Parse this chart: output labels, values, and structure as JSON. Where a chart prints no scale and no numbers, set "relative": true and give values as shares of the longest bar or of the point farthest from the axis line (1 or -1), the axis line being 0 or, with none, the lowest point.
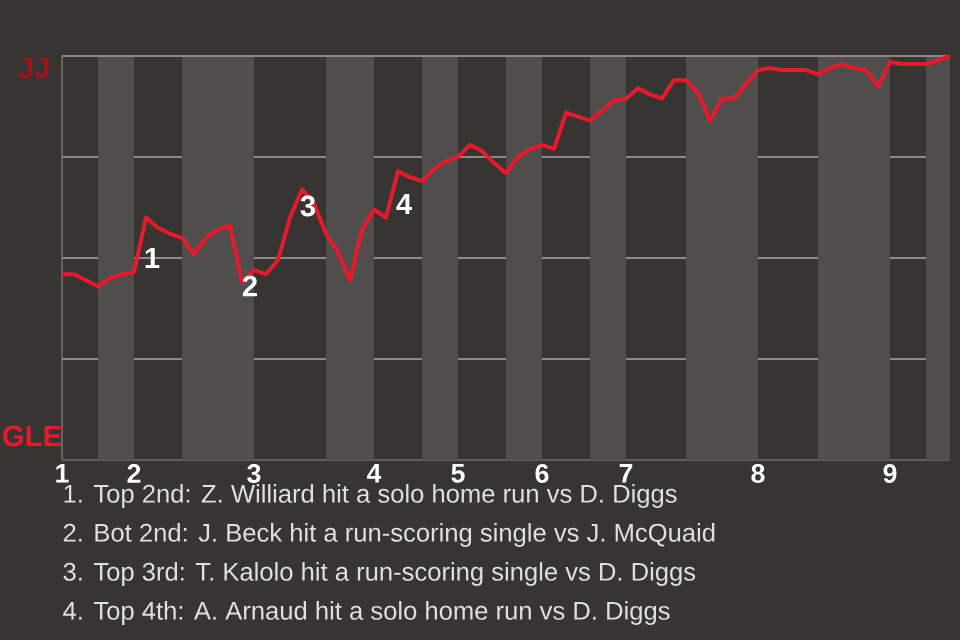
{
  "chart_data": {
    "type": "line",
    "relative": true,
    "categories": [
      "1",
      null,
      null,
      null,
      null,
      null,
      "2",
      null,
      null,
      null,
      null,
      null,
      null,
      null,
      null,
      null,
      "3",
      null,
      null,
      null,
      null,
      null,
      null,
      null,
      null,
      null,
      "4",
      null,
      null,
      null,
      null,
      null,
      null,
      "5",
      null,
      null,
      null,
      null,
      null,
      null,
      "6",
      null,
      null,
      null,
      null,
      null,
      null,
      "7",
      null,
      null,
      null,
      null,
      null,
      null,
      null,
      null,
      null,
      null,
      "8",
      null,
      null,
      null,
      null,
      null,
      null,
      null,
      null,
      null,
      null,
      "9",
      null,
      null,
      null,
      null,
      null
    ],
    "series": [
      {
        "color": "#e8192c",
        "values": [
          0.46,
          0.46,
          0.445,
          0.43,
          0.45,
          0.46,
          0.465,
          0.6,
          0.575,
          0.56,
          0.55,
          0.51,
          0.55,
          0.57,
          0.58,
          0.44,
          0.47,
          0.46,
          0.495,
          0.6,
          0.67,
          0.635,
          0.56,
          0.515,
          0.445,
          0.57,
          0.62,
          0.6,
          0.715,
          0.7,
          0.69,
          0.72,
          0.74,
          0.75,
          0.78,
          0.765,
          0.735,
          0.71,
          0.75,
          0.77,
          0.78,
          0.77,
          0.86,
          0.85,
          0.84,
          0.865,
          0.89,
          0.895,
          0.92,
          0.905,
          0.895,
          0.94,
          0.94,
          0.91,
          0.84,
          0.895,
          0.895,
          0.93,
          0.965,
          0.97,
          0.965,
          0.965,
          0.965,
          0.955,
          0.97,
          0.98,
          0.97,
          0.965,
          0.925,
          0.985,
          0.98,
          0.98,
          0.98,
          0.99,
          1.0
        ]
      }
    ],
    "grid": "y",
    "annotations": [
      "JJ",
      "GLE",
      "1",
      "2",
      "3",
      "4",
      "1. Top 2nd: Z. Williard hit a solo home run vs D. Diggs",
      "2. Bot 2nd: J. Beck hit a run-scoring single vs J. McQuaid",
      "3. Top 3rd: T. Kalolo hit a run-scoring single vs D. Diggs",
      "4. Top 4th: A. Arnaud hit a solo home run vs D. Diggs"
    ]
  }
}
